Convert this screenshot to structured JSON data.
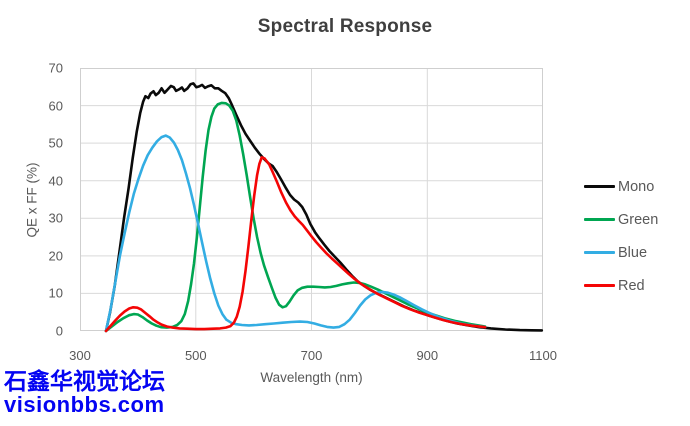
{
  "watermark": {
    "line1": "石鑫华视觉论坛",
    "line2": "visionbbs.com",
    "color": "#0404f2"
  },
  "chart_data": {
    "type": "line",
    "title": "Spectral Response",
    "xlabel": "Wavelength (nm)",
    "ylabel": "QE x FF (%)",
    "xlim": [
      300,
      1100
    ],
    "ylim": [
      0,
      70
    ],
    "x_ticks": [
      "300",
      "500",
      "700",
      "900",
      "1100"
    ],
    "y_ticks": [
      "70",
      "60",
      "50",
      "40",
      "30",
      "20",
      "10",
      "0"
    ],
    "x_gridlines": [
      500,
      700,
      900
    ],
    "y_gridlines": [
      10,
      20,
      30,
      40,
      50,
      60
    ],
    "grid": true,
    "grid_color": "#d9d9d9",
    "border_color": "#cfcfcf",
    "legend_position": "right",
    "series": [
      {
        "name": "Mono",
        "color": "#0a0a0a",
        "points": [
          [
            345,
            0
          ],
          [
            352,
            5
          ],
          [
            360,
            12
          ],
          [
            368,
            21
          ],
          [
            376,
            30
          ],
          [
            384,
            38
          ],
          [
            391,
            46
          ],
          [
            398,
            53
          ],
          [
            404,
            58
          ],
          [
            409,
            61
          ],
          [
            413,
            62.5
          ],
          [
            418,
            62.0
          ],
          [
            422,
            63.2
          ],
          [
            427,
            63.8
          ],
          [
            431,
            62.8
          ],
          [
            436,
            63.4
          ],
          [
            441,
            64.6
          ],
          [
            446,
            63.4
          ],
          [
            451,
            64.2
          ],
          [
            457,
            65.2
          ],
          [
            462,
            64.9
          ],
          [
            466,
            63.9
          ],
          [
            471,
            64.3
          ],
          [
            476,
            64.8
          ],
          [
            480,
            63.9
          ],
          [
            486,
            64.6
          ],
          [
            491,
            65.7
          ],
          [
            496,
            65.9
          ],
          [
            501,
            64.9
          ],
          [
            506,
            65.1
          ],
          [
            511,
            65.5
          ],
          [
            516,
            64.7
          ],
          [
            521,
            65.1
          ],
          [
            527,
            65.4
          ],
          [
            533,
            64.6
          ],
          [
            539,
            64.6
          ],
          [
            545,
            63.9
          ],
          [
            551,
            63.3
          ],
          [
            557,
            62.0
          ],
          [
            563,
            60.0
          ],
          [
            570,
            57.5
          ],
          [
            578,
            54.8
          ],
          [
            586,
            52.5
          ],
          [
            594,
            50.6
          ],
          [
            602,
            48.8
          ],
          [
            610,
            47.2
          ],
          [
            618,
            45.8
          ],
          [
            626,
            44.6
          ],
          [
            633,
            43.9
          ],
          [
            640,
            42.3
          ],
          [
            648,
            40.2
          ],
          [
            656,
            38.0
          ],
          [
            663,
            36.2
          ],
          [
            670,
            35.0
          ],
          [
            677,
            34.2
          ],
          [
            684,
            33.0
          ],
          [
            691,
            31.0
          ],
          [
            698,
            28.5
          ],
          [
            706,
            26.3
          ],
          [
            714,
            24.6
          ],
          [
            722,
            23.0
          ],
          [
            731,
            21.3
          ],
          [
            740,
            19.8
          ],
          [
            750,
            18.2
          ],
          [
            760,
            16.4
          ],
          [
            770,
            14.7
          ],
          [
            780,
            13.2
          ],
          [
            790,
            12.1
          ],
          [
            800,
            11.1
          ],
          [
            812,
            10.1
          ],
          [
            824,
            9.2
          ],
          [
            836,
            8.3
          ],
          [
            848,
            7.4
          ],
          [
            862,
            6.4
          ],
          [
            876,
            5.5
          ],
          [
            890,
            4.8
          ],
          [
            905,
            4.0
          ],
          [
            920,
            3.3
          ],
          [
            936,
            2.6
          ],
          [
            952,
            2.0
          ],
          [
            970,
            1.5
          ],
          [
            990,
            1.0
          ],
          [
            1010,
            0.7
          ],
          [
            1035,
            0.4
          ],
          [
            1060,
            0.25
          ],
          [
            1080,
            0.18
          ],
          [
            1098,
            0.15
          ]
        ]
      },
      {
        "name": "Green",
        "color": "#00a651",
        "points": [
          [
            345,
            0
          ],
          [
            355,
            1.2
          ],
          [
            365,
            2.4
          ],
          [
            375,
            3.4
          ],
          [
            385,
            4.2
          ],
          [
            393,
            4.5
          ],
          [
            400,
            4.4
          ],
          [
            408,
            3.7
          ],
          [
            416,
            2.8
          ],
          [
            424,
            2.0
          ],
          [
            432,
            1.4
          ],
          [
            440,
            1.0
          ],
          [
            450,
            0.9
          ],
          [
            460,
            1.1
          ],
          [
            468,
            1.6
          ],
          [
            475,
            2.6
          ],
          [
            481,
            4.5
          ],
          [
            487,
            8.0
          ],
          [
            492,
            12.5
          ],
          [
            497,
            18.0
          ],
          [
            502,
            25.0
          ],
          [
            507,
            33.0
          ],
          [
            512,
            41.0
          ],
          [
            517,
            48.0
          ],
          [
            522,
            53.5
          ],
          [
            527,
            57.0
          ],
          [
            532,
            59.2
          ],
          [
            538,
            60.3
          ],
          [
            545,
            60.7
          ],
          [
            552,
            60.6
          ],
          [
            558,
            60.0
          ],
          [
            564,
            58.6
          ],
          [
            570,
            56.0
          ],
          [
            576,
            52.0
          ],
          [
            582,
            47.0
          ],
          [
            588,
            41.5
          ],
          [
            594,
            35.5
          ],
          [
            600,
            30.0
          ],
          [
            606,
            25.0
          ],
          [
            612,
            20.8
          ],
          [
            618,
            17.5
          ],
          [
            625,
            14.3
          ],
          [
            632,
            11.3
          ],
          [
            638,
            8.8
          ],
          [
            644,
            7.0
          ],
          [
            650,
            6.3
          ],
          [
            656,
            6.6
          ],
          [
            662,
            7.8
          ],
          [
            669,
            9.5
          ],
          [
            676,
            10.8
          ],
          [
            684,
            11.5
          ],
          [
            693,
            11.8
          ],
          [
            703,
            11.8
          ],
          [
            713,
            11.7
          ],
          [
            723,
            11.6
          ],
          [
            733,
            11.7
          ],
          [
            743,
            12.0
          ],
          [
            753,
            12.4
          ],
          [
            763,
            12.7
          ],
          [
            773,
            12.9
          ],
          [
            783,
            12.8
          ],
          [
            793,
            12.4
          ],
          [
            803,
            11.8
          ],
          [
            815,
            11.0
          ],
          [
            827,
            10.1
          ],
          [
            839,
            9.2
          ],
          [
            851,
            8.3
          ],
          [
            865,
            7.2
          ],
          [
            880,
            6.2
          ],
          [
            895,
            5.2
          ],
          [
            910,
            4.4
          ],
          [
            930,
            3.4
          ],
          [
            950,
            2.6
          ],
          [
            975,
            1.8
          ],
          [
            1000,
            1.2
          ]
        ]
      },
      {
        "name": "Blue",
        "color": "#33ade3",
        "points": [
          [
            345,
            0
          ],
          [
            353,
            6
          ],
          [
            361,
            13
          ],
          [
            369,
            20
          ],
          [
            377,
            26
          ],
          [
            385,
            31.5
          ],
          [
            393,
            36.5
          ],
          [
            401,
            40.5
          ],
          [
            409,
            44
          ],
          [
            417,
            46.8
          ],
          [
            425,
            48.8
          ],
          [
            433,
            50.5
          ],
          [
            441,
            51.6
          ],
          [
            448,
            52.0
          ],
          [
            455,
            51.5
          ],
          [
            462,
            50.2
          ],
          [
            469,
            48.2
          ],
          [
            476,
            45.5
          ],
          [
            483,
            42.0
          ],
          [
            490,
            38.0
          ],
          [
            497,
            33.5
          ],
          [
            504,
            28.5
          ],
          [
            511,
            23.5
          ],
          [
            518,
            18.5
          ],
          [
            525,
            14.0
          ],
          [
            532,
            10.0
          ],
          [
            539,
            6.8
          ],
          [
            546,
            4.5
          ],
          [
            553,
            3.0
          ],
          [
            561,
            2.2
          ],
          [
            570,
            1.8
          ],
          [
            580,
            1.6
          ],
          [
            592,
            1.5
          ],
          [
            605,
            1.6
          ],
          [
            620,
            1.8
          ],
          [
            635,
            2.0
          ],
          [
            650,
            2.2
          ],
          [
            665,
            2.4
          ],
          [
            680,
            2.5
          ],
          [
            693,
            2.4
          ],
          [
            705,
            2.0
          ],
          [
            716,
            1.5
          ],
          [
            727,
            1.1
          ],
          [
            738,
            0.9
          ],
          [
            748,
            1.1
          ],
          [
            757,
            1.8
          ],
          [
            766,
            3.0
          ],
          [
            775,
            4.8
          ],
          [
            784,
            6.8
          ],
          [
            793,
            8.4
          ],
          [
            802,
            9.5
          ],
          [
            812,
            10.2
          ],
          [
            822,
            10.4
          ],
          [
            832,
            10.2
          ],
          [
            842,
            9.7
          ],
          [
            852,
            9.0
          ],
          [
            864,
            8.0
          ],
          [
            877,
            6.9
          ],
          [
            890,
            5.8
          ],
          [
            905,
            4.7
          ],
          [
            922,
            3.6
          ],
          [
            940,
            2.7
          ],
          [
            960,
            1.9
          ],
          [
            980,
            1.4
          ],
          [
            1000,
            1.0
          ]
        ]
      },
      {
        "name": "Red",
        "color": "#f40505",
        "points": [
          [
            345,
            0
          ],
          [
            353,
            1.4
          ],
          [
            361,
            2.8
          ],
          [
            369,
            4.1
          ],
          [
            377,
            5.2
          ],
          [
            385,
            6.0
          ],
          [
            392,
            6.3
          ],
          [
            399,
            6.2
          ],
          [
            406,
            5.7
          ],
          [
            413,
            4.8
          ],
          [
            420,
            3.9
          ],
          [
            427,
            3.0
          ],
          [
            434,
            2.3
          ],
          [
            441,
            1.7
          ],
          [
            450,
            1.2
          ],
          [
            460,
            0.9
          ],
          [
            472,
            0.7
          ],
          [
            485,
            0.6
          ],
          [
            500,
            0.5
          ],
          [
            515,
            0.5
          ],
          [
            530,
            0.6
          ],
          [
            542,
            0.7
          ],
          [
            552,
            0.9
          ],
          [
            560,
            1.3
          ],
          [
            566,
            2.2
          ],
          [
            571,
            3.8
          ],
          [
            576,
            6.5
          ],
          [
            581,
            10.5
          ],
          [
            586,
            16.0
          ],
          [
            591,
            22.5
          ],
          [
            596,
            29.5
          ],
          [
            601,
            36.0
          ],
          [
            606,
            41.5
          ],
          [
            610,
            44.5
          ],
          [
            614,
            46.2
          ],
          [
            619,
            45.9
          ],
          [
            627,
            44.3
          ],
          [
            633,
            42.3
          ],
          [
            640,
            39.8
          ],
          [
            648,
            36.8
          ],
          [
            656,
            34.2
          ],
          [
            664,
            32.0
          ],
          [
            671,
            30.5
          ],
          [
            678,
            29.3
          ],
          [
            685,
            28.2
          ],
          [
            692,
            26.8
          ],
          [
            700,
            25.2
          ],
          [
            708,
            23.7
          ],
          [
            716,
            22.3
          ],
          [
            725,
            20.8
          ],
          [
            735,
            19.3
          ],
          [
            745,
            17.9
          ],
          [
            755,
            16.5
          ],
          [
            765,
            15.1
          ],
          [
            775,
            13.8
          ],
          [
            785,
            12.6
          ],
          [
            795,
            11.6
          ],
          [
            807,
            10.5
          ],
          [
            819,
            9.5
          ],
          [
            831,
            8.6
          ],
          [
            843,
            7.7
          ],
          [
            856,
            6.7
          ],
          [
            870,
            5.8
          ],
          [
            884,
            5.0
          ],
          [
            898,
            4.3
          ],
          [
            913,
            3.6
          ],
          [
            928,
            2.9
          ],
          [
            944,
            2.3
          ],
          [
            960,
            1.8
          ],
          [
            977,
            1.4
          ],
          [
            1000,
            1.0
          ]
        ]
      }
    ]
  }
}
